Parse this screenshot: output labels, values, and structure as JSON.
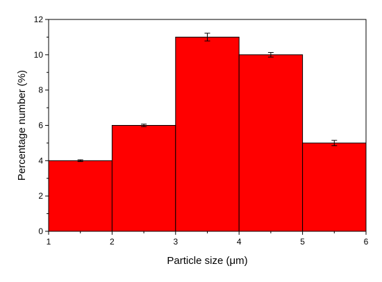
{
  "chart_data": {
    "type": "bar",
    "bin_edges": [
      1,
      2,
      3,
      4,
      5,
      6
    ],
    "values": [
      4,
      6,
      11,
      10,
      5
    ],
    "errors": [
      0.05,
      0.07,
      0.22,
      0.13,
      0.15
    ],
    "xlabel": "Particle size (μm)",
    "ylabel": "Percentage number (%)",
    "xlim": [
      1,
      6
    ],
    "ylim": [
      0,
      12
    ],
    "xticks": [
      1,
      2,
      3,
      4,
      5,
      6
    ],
    "yticks": [
      0,
      2,
      4,
      6,
      8,
      10,
      12
    ],
    "grid": false,
    "bar_color": "#ff0000",
    "edge_color": "#000000"
  }
}
